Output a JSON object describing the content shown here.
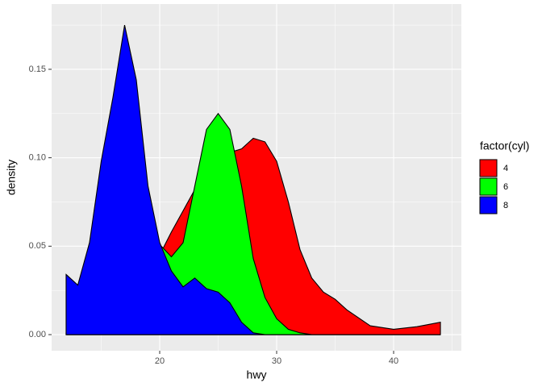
{
  "chart_data": {
    "type": "area",
    "x_label": "hwy",
    "y_label": "density",
    "legend_title": "factor(cyl)",
    "x": [
      12,
      13,
      14,
      15,
      16,
      17,
      18,
      19,
      20,
      21,
      22,
      23,
      24,
      25,
      26,
      27,
      28,
      29,
      30,
      31,
      32,
      33,
      34,
      35,
      36,
      38,
      40,
      42,
      44
    ],
    "series": [
      {
        "name": "4",
        "color": "#FF0000",
        "values": [
          0.001,
          0.002,
          0.004,
          0.006,
          0.01,
          0.016,
          0.024,
          0.034,
          0.045,
          0.058,
          0.07,
          0.082,
          0.092,
          0.099,
          0.103,
          0.105,
          0.111,
          0.109,
          0.098,
          0.075,
          0.048,
          0.032,
          0.024,
          0.02,
          0.014,
          0.005,
          0.003,
          0.0045,
          0.007
        ]
      },
      {
        "name": "6",
        "color": "#00FF00",
        "values": [
          0,
          0,
          0.001,
          0.004,
          0.01,
          0.02,
          0.035,
          0.048,
          0.051,
          0.044,
          0.052,
          0.084,
          0.116,
          0.125,
          0.116,
          0.084,
          0.043,
          0.021,
          0.009,
          0.003,
          0.001,
          0,
          0,
          0,
          0,
          0,
          0,
          0,
          0
        ]
      },
      {
        "name": "8",
        "color": "#0000FF",
        "values": [
          0.034,
          0.028,
          0.052,
          0.098,
          0.134,
          0.175,
          0.144,
          0.084,
          0.052,
          0.036,
          0.027,
          0.032,
          0.026,
          0.024,
          0.018,
          0.007,
          0.001,
          0,
          0,
          0,
          0,
          0,
          0,
          0,
          0,
          0,
          0,
          0,
          0
        ]
      }
    ],
    "xlim": [
      10.76,
      45.79
    ],
    "ylim": [
      -0.0091,
      0.1869
    ],
    "xticks": [
      20,
      30,
      40
    ],
    "yticks": [
      {
        "value": 0,
        "label": "0.00"
      },
      {
        "value": 0.05,
        "label": "0.05"
      },
      {
        "value": 0.1,
        "label": "0.10"
      },
      {
        "value": 0.15,
        "label": "0.15"
      }
    ],
    "grid": true,
    "legend": "right"
  }
}
